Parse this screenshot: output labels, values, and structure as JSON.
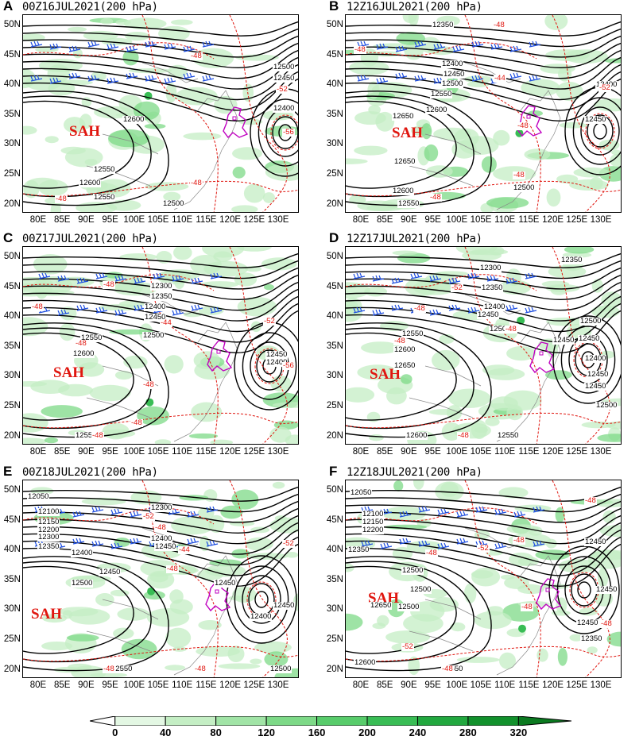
{
  "panels": [
    {
      "letter": "A",
      "title": "00Z16JUL2021(200 hPa)",
      "sah_label": "SAH",
      "contour_labels": [
        "12600",
        "12550",
        "12600",
        "12550",
        "12500",
        "12400",
        "12450",
        "12500"
      ],
      "red_labels": [
        "-48",
        "-48",
        "-52",
        "-56",
        "-48"
      ]
    },
    {
      "letter": "B",
      "title": "12Z16JUL2021(200 hPa)",
      "sah_label": "SAH",
      "contour_labels": [
        "12350",
        "12400",
        "12450",
        "12500",
        "12550",
        "12600",
        "12650",
        "12650",
        "12600",
        "12550",
        "12500",
        "12450",
        "12400"
      ],
      "red_labels": [
        "-48",
        "-48",
        "-44",
        "-48",
        "-52",
        "-48",
        "-48"
      ]
    },
    {
      "letter": "C",
      "title": "00Z17JUL2021(200 hPa)",
      "sah_label": "SAH",
      "contour_labels": [
        "12300",
        "12350",
        "12400",
        "12450",
        "12500",
        "12550",
        "12600",
        "12550",
        "12450",
        "12400"
      ],
      "red_labels": [
        "-48",
        "-48",
        "-44",
        "-48",
        "-52",
        "-48",
        "-48",
        "-48",
        "-56"
      ]
    },
    {
      "letter": "D",
      "title": "12Z17JUL2021(200 hPa)",
      "sah_label": "SAH",
      "contour_labels": [
        "12300",
        "12350",
        "12400",
        "12450",
        "12500",
        "12550",
        "12600",
        "12650",
        "12600",
        "12550",
        "12500",
        "12450",
        "12450",
        "12400",
        "12450",
        "12500",
        "12350",
        "12450"
      ],
      "red_labels": [
        "-52",
        "-48",
        "-48",
        "-48",
        "-48"
      ]
    },
    {
      "letter": "E",
      "title": "00Z18JUL2021(200 hPa)",
      "sah_label": "SAH",
      "contour_labels": [
        "12050",
        "12100",
        "12150",
        "12200",
        "12300",
        "12350",
        "12400",
        "12450",
        "12500",
        "12450",
        "12400",
        "12450",
        "12550",
        "12500",
        "12300",
        "12400",
        "12450"
      ],
      "red_labels": [
        "-52",
        "-48",
        "-44",
        "-48",
        "-52",
        "-48",
        "-48"
      ]
    },
    {
      "letter": "F",
      "title": "12Z18JUL2021(200 hPa)",
      "sah_label": "SAH",
      "contour_labels": [
        "12050",
        "12100",
        "12150",
        "12200",
        "12350",
        "12450",
        "12500",
        "12500",
        "12450",
        "12350",
        "12550",
        "12600",
        "12500",
        "12450",
        "12650"
      ],
      "red_labels": [
        "-48",
        "-48",
        "-52",
        "-48",
        "-48",
        "-52",
        "-48",
        "-48"
      ]
    }
  ],
  "lat_labels": [
    "50N",
    "45N",
    "40N",
    "35N",
    "30N",
    "25N",
    "20N"
  ],
  "lon_labels": [
    "80E",
    "85E",
    "90E",
    "95E",
    "100E",
    "105E",
    "110E",
    "115E",
    "120E",
    "125E",
    "130E"
  ],
  "colorbar": {
    "ticks": [
      "0",
      "40",
      "80",
      "120",
      "160",
      "200",
      "240",
      "280",
      "320"
    ],
    "colors": [
      "#ffffff",
      "#e3f7e3",
      "#c4eec4",
      "#a1e4a6",
      "#7dd987",
      "#58cc6b",
      "#39bd55",
      "#22a83f",
      "#12912c",
      "#0b7a20"
    ]
  },
  "colors": {
    "geopotential": "#000000",
    "temperature": "#e0160f",
    "jet": "#1f4fe0",
    "henan": "#c000c0",
    "coast": "#888888",
    "cape": "#a8e6aa"
  }
}
